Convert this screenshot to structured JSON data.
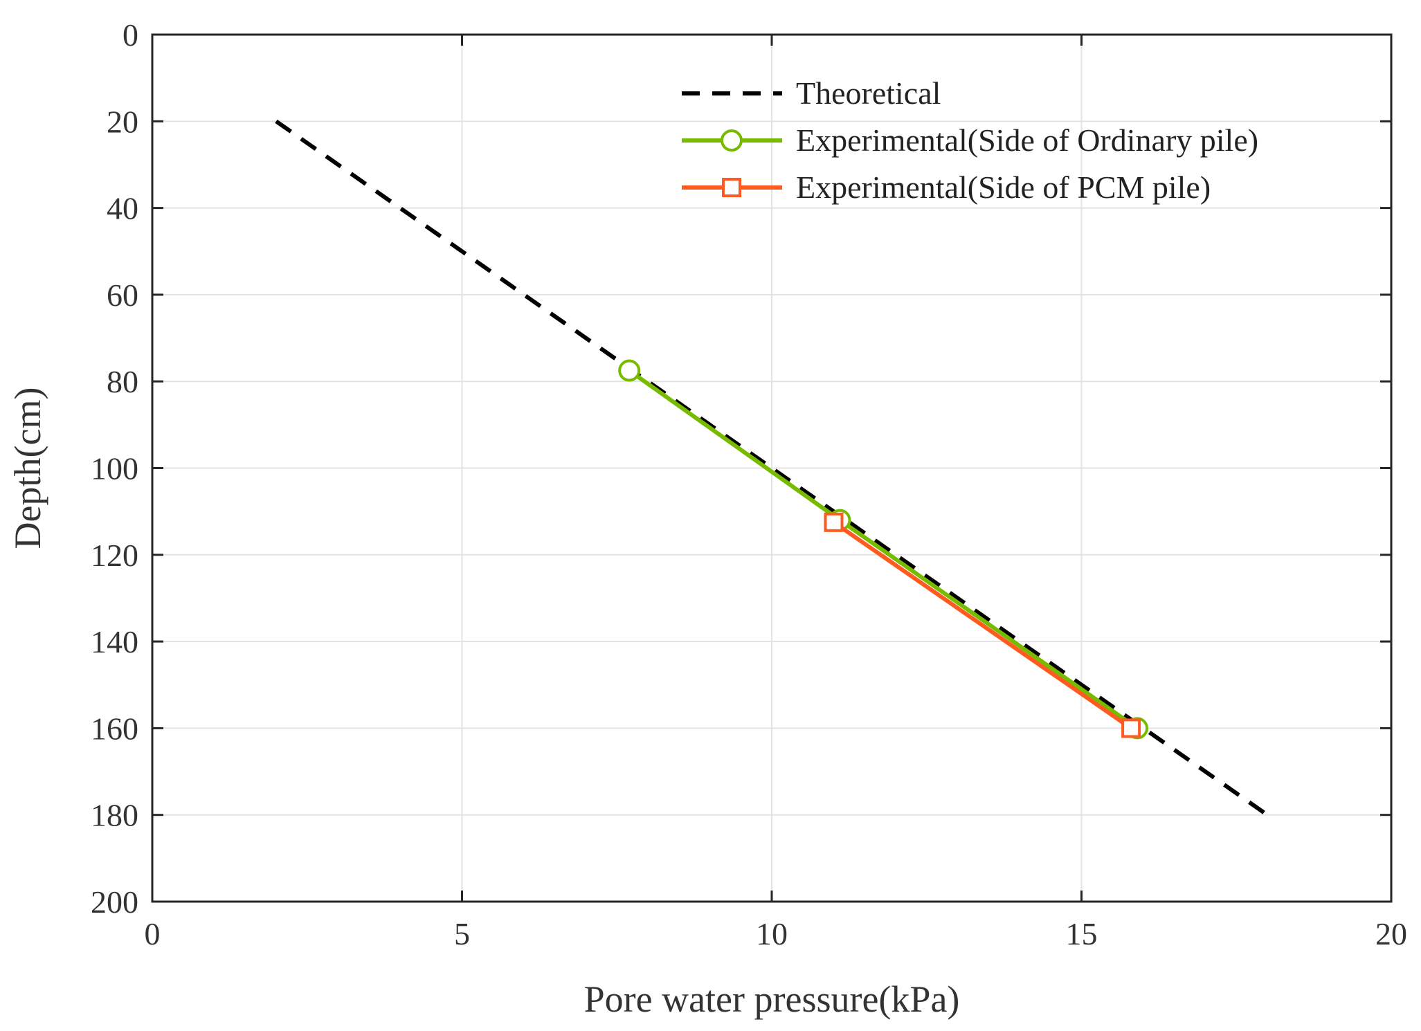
{
  "chart_data": {
    "type": "line",
    "xlabel": "Pore water pressure(kPa)",
    "ylabel": "Depth(cm)",
    "xlim": [
      0,
      20
    ],
    "ylim": [
      0,
      200
    ],
    "y_reversed": true,
    "xticks": [
      0,
      5,
      10,
      15,
      20
    ],
    "yticks": [
      0,
      20,
      40,
      60,
      80,
      100,
      120,
      140,
      160,
      180,
      200
    ],
    "xtick_labels": [
      "0",
      "5",
      "10",
      "15",
      "20"
    ],
    "ytick_labels": [
      "0",
      "20",
      "40",
      "60",
      "80",
      "100",
      "120",
      "140",
      "160",
      "180",
      "200"
    ],
    "grid": true,
    "legend_position": "top-right",
    "series": [
      {
        "name": "Theoretical",
        "color": "#000000",
        "style": "dashed",
        "marker": "none",
        "points": [
          [
            2,
            20
          ],
          [
            18,
            180
          ]
        ]
      },
      {
        "name": "Experimental(Side of Ordinary pile)",
        "color": "#77bb00",
        "style": "solid",
        "marker": "circle",
        "points": [
          [
            7.7,
            77.5
          ],
          [
            11.1,
            112
          ],
          [
            15.9,
            160
          ]
        ]
      },
      {
        "name": "Experimental(Side of PCM pile)",
        "color": "#ff5a1f",
        "style": "solid",
        "marker": "square",
        "points": [
          [
            11.0,
            112.5
          ],
          [
            15.8,
            160
          ]
        ]
      }
    ]
  }
}
